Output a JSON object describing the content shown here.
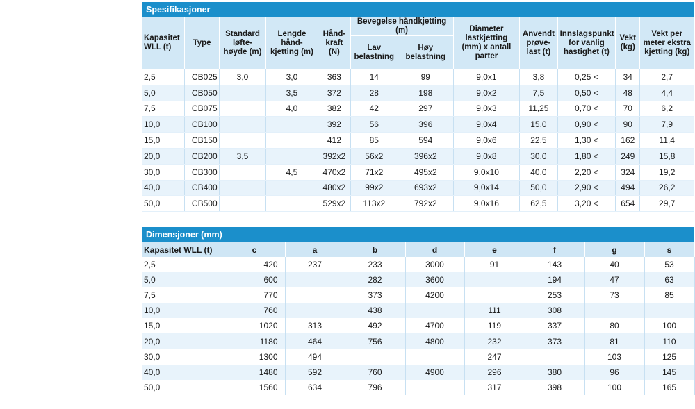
{
  "spec": {
    "title": "Spesifikasjoner",
    "headers": {
      "kapasitet": "Kapasitet WLL (t)",
      "type": "Type",
      "standard": "Standard løfte-høyde (m)",
      "lengde": "Lengde hånd-kjetting (m)",
      "handkraft": "Hånd-kraft (N)",
      "bevegelse": "Bevegelse håndkjetting (m)",
      "lav": "Lav belastning",
      "hoy": "Høy belastning",
      "diameter": "Diameter lastkjetting (mm) x antall parter",
      "anvendt": "Anvendt prøve-last (t)",
      "innslag": "Innslagspunkt for vanlig hastighet (t)",
      "vekt": "Vekt (kg)",
      "vektper": "Vekt per meter ekstra kjetting (kg)"
    },
    "rows": [
      [
        "2,5",
        "CB025",
        "3,0",
        "3,0",
        "363",
        "14",
        "99",
        "9,0x1",
        "3,8",
        "0,25 <",
        "34",
        "2,7"
      ],
      [
        "5,0",
        "CB050",
        "",
        "3,5",
        "372",
        "28",
        "198",
        "9,0x2",
        "7,5",
        "0,50 <",
        "48",
        "4,4"
      ],
      [
        "7,5",
        "CB075",
        "",
        "4,0",
        "382",
        "42",
        "297",
        "9,0x3",
        "11,25",
        "0,70 <",
        "70",
        "6,2"
      ],
      [
        "10,0",
        "CB100",
        "",
        "",
        "392",
        "56",
        "396",
        "9,0x4",
        "15,0",
        "0,90 <",
        "90",
        "7,9"
      ],
      [
        "15,0",
        "CB150",
        "",
        "",
        "412",
        "85",
        "594",
        "9,0x6",
        "22,5",
        "1,30 <",
        "162",
        "11,4"
      ],
      [
        "20,0",
        "CB200",
        "3,5",
        "",
        "392x2",
        "56x2",
        "396x2",
        "9,0x8",
        "30,0",
        "1,80 <",
        "249",
        "15,8"
      ],
      [
        "30,0",
        "CB300",
        "",
        "4,5",
        "470x2",
        "71x2",
        "495x2",
        "9,0x10",
        "40,0",
        "2,20 <",
        "324",
        "19,2"
      ],
      [
        "40,0",
        "CB400",
        "",
        "",
        "480x2",
        "99x2",
        "693x2",
        "9,0x14",
        "50,0",
        "2,90 <",
        "494",
        "26,2"
      ],
      [
        "50,0",
        "CB500",
        "",
        "",
        "529x2",
        "113x2",
        "792x2",
        "9,0x16",
        "62,5",
        "3,20 <",
        "654",
        "29,7"
      ]
    ]
  },
  "dim": {
    "title": "Dimensjoner (mm)",
    "headers": [
      "Kapasitet WLL (t)",
      "c",
      "a",
      "b",
      "d",
      "e",
      "f",
      "g",
      "s"
    ],
    "rows": [
      [
        "2,5",
        "420",
        "237",
        "233",
        "3000",
        "91",
        "143",
        "40",
        "53"
      ],
      [
        "5,0",
        "600",
        "",
        "282",
        "3600",
        "",
        "194",
        "47",
        "63"
      ],
      [
        "7,5",
        "770",
        "",
        "373",
        "4200",
        "",
        "253",
        "73",
        "85"
      ],
      [
        "10,0",
        "760",
        "",
        "438",
        "",
        "111",
        "308",
        "",
        ""
      ],
      [
        "15,0",
        "1020",
        "313",
        "492",
        "4700",
        "119",
        "337",
        "80",
        "100"
      ],
      [
        "20,0",
        "1180",
        "464",
        "756",
        "4800",
        "232",
        "373",
        "81",
        "110"
      ],
      [
        "30,0",
        "1300",
        "494",
        "",
        "",
        "247",
        "",
        "103",
        "125"
      ],
      [
        "40,0",
        "1480",
        "592",
        "760",
        "4900",
        "296",
        "380",
        "96",
        "145"
      ],
      [
        "50,0",
        "1560",
        "634",
        "796",
        "",
        "317",
        "398",
        "100",
        "165"
      ]
    ]
  }
}
